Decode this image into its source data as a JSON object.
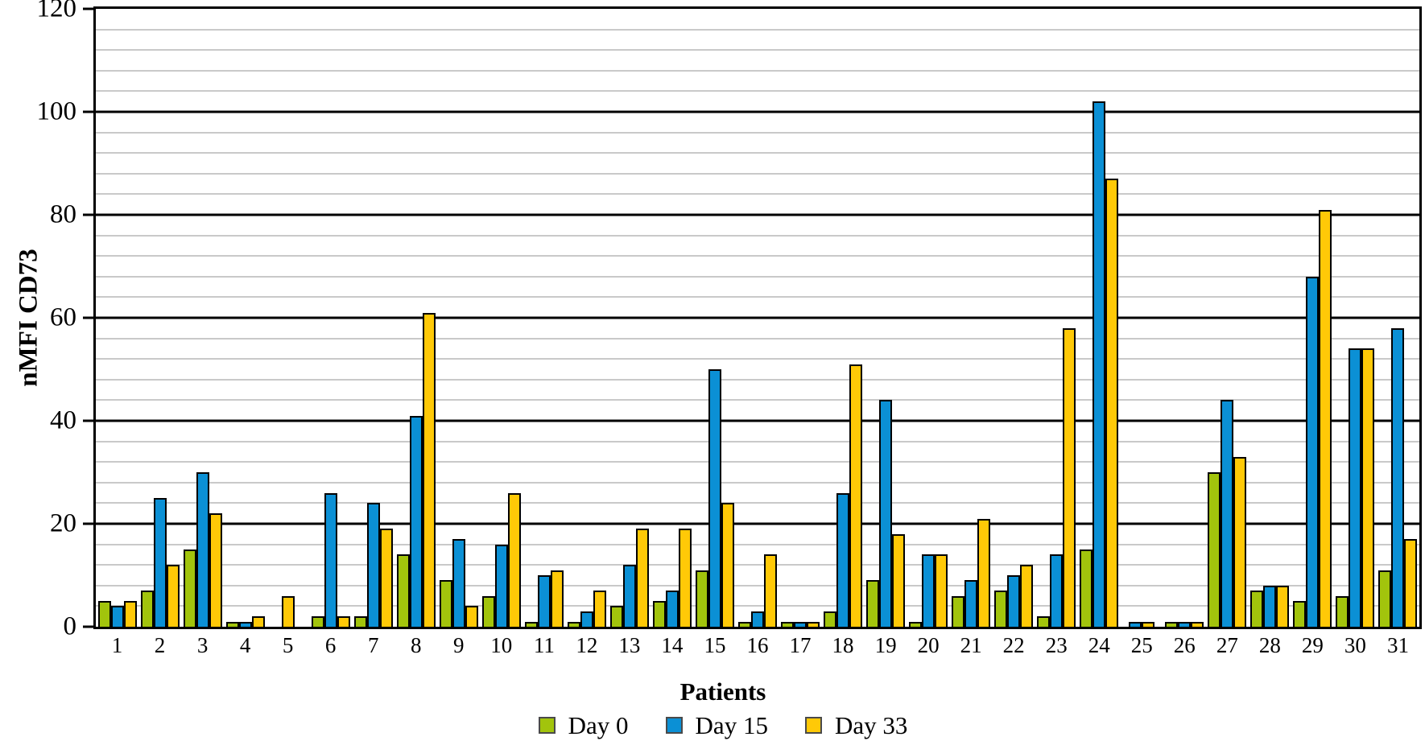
{
  "chart_data": {
    "type": "bar",
    "title": "",
    "xlabel": "Patients",
    "ylabel": "nMFI CD73",
    "ylim": [
      0,
      120
    ],
    "y_major_step": 20,
    "y_minor_step": 4,
    "grid": "horizontal, black major lines + light gray minor lines",
    "legend_position": "bottom-center",
    "categories": [
      "1",
      "2",
      "3",
      "4",
      "5",
      "6",
      "7",
      "8",
      "9",
      "10",
      "11",
      "12",
      "13",
      "14",
      "15",
      "16",
      "17",
      "18",
      "19",
      "20",
      "21",
      "22",
      "23",
      "24",
      "25",
      "26",
      "27",
      "28",
      "29",
      "30",
      "31"
    ],
    "series": [
      {
        "name": "Day 0",
        "color": "#a2c40c",
        "values": [
          5,
          7,
          15,
          1,
          0,
          2,
          2,
          14,
          9,
          6,
          1,
          1,
          4,
          5,
          11,
          1,
          1,
          3,
          9,
          1,
          6,
          7,
          2,
          15,
          0,
          1,
          30,
          7,
          5,
          6,
          11
        ]
      },
      {
        "name": "Day 15",
        "color": "#0b90d5",
        "values": [
          4,
          25,
          30,
          1,
          0,
          26,
          24,
          41,
          17,
          16,
          10,
          3,
          12,
          7,
          50,
          3,
          1,
          26,
          44,
          14,
          9,
          10,
          14,
          102,
          1,
          1,
          44,
          8,
          68,
          54,
          58
        ]
      },
      {
        "name": "Day 33",
        "color": "#ffc907",
        "values": [
          5,
          12,
          22,
          2,
          6,
          2,
          19,
          61,
          4,
          26,
          11,
          7,
          19,
          19,
          24,
          14,
          1,
          51,
          18,
          14,
          21,
          12,
          58,
          87,
          1,
          1,
          33,
          8,
          81,
          54,
          17
        ]
      }
    ]
  },
  "styles": {
    "major_gridline_color": "#000000",
    "minor_gridline_color": "#c9c9c9",
    "bar_border_color": "#000000",
    "legend_swatch_border_color": "#4a4a4a"
  }
}
